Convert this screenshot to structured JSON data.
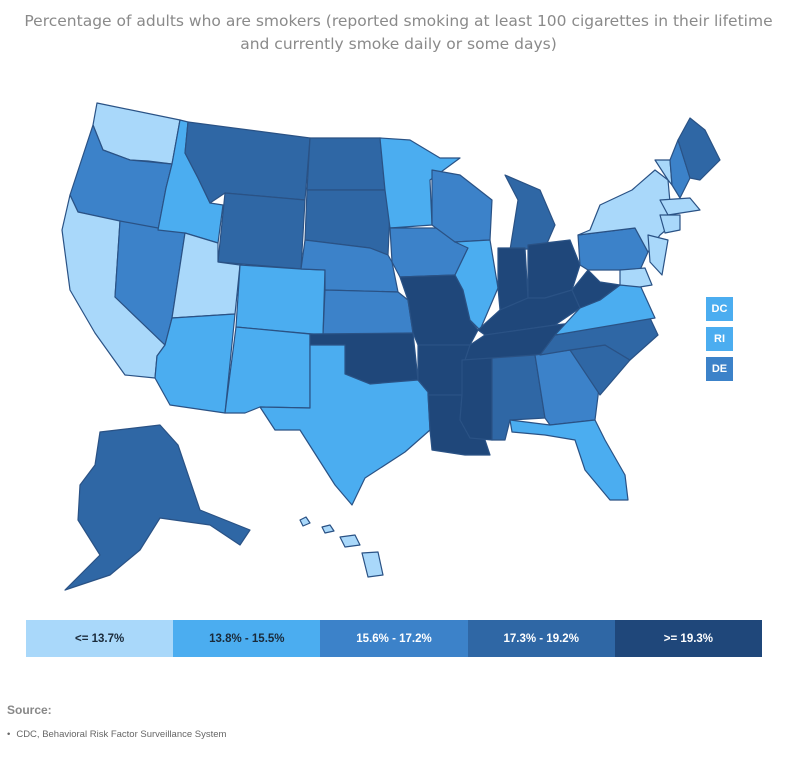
{
  "title": "Percentage of adults who are smokers (reported smoking at least 100 cigarettes in their lifetime and currently smoke daily or some days)",
  "colors": [
    "#a9d8fa",
    "#4badf0",
    "#3c82c9",
    "#2f67a5",
    "#1f477a"
  ],
  "legend": [
    {
      "label": "<= 13.7%",
      "bin": 0
    },
    {
      "label": "13.8% - 15.5%",
      "bin": 1
    },
    {
      "label": "15.6% - 17.2%",
      "bin": 2
    },
    {
      "label": "17.3% - 19.2%",
      "bin": 3
    },
    {
      "label": ">= 19.3%",
      "bin": 4
    }
  ],
  "small_states": [
    {
      "label": "DC",
      "bin": 1
    },
    {
      "label": "RI",
      "bin": 1
    },
    {
      "label": "DE",
      "bin": 2
    }
  ],
  "state_bins": {
    "WA": 0,
    "OR": 2,
    "CA": 0,
    "NV": 2,
    "ID": 1,
    "MT": 3,
    "WY": 3,
    "UT": 0,
    "AZ": 1,
    "CO": 1,
    "NM": 1,
    "ND": 3,
    "SD": 3,
    "NE": 2,
    "KS": 2,
    "OK": 4,
    "TX": 1,
    "MN": 1,
    "IA": 2,
    "MO": 4,
    "AR": 4,
    "LA": 4,
    "WI": 2,
    "IL": 1,
    "MI": 3,
    "IN": 4,
    "OH": 4,
    "KY": 4,
    "TN": 4,
    "MS": 4,
    "AL": 3,
    "GA": 2,
    "FL": 1,
    "SC": 3,
    "NC": 3,
    "VA": 1,
    "WV": 4,
    "PA": 2,
    "NY": 0,
    "VT": 0,
    "NH": 2,
    "ME": 3,
    "MA": 0,
    "CT": 0,
    "NJ": 0,
    "MD": 0,
    "AK": 3,
    "HI": 0
  },
  "source": {
    "heading": "Source:",
    "items": [
      "CDC, Behavioral Risk Factor Surveillance System"
    ]
  }
}
